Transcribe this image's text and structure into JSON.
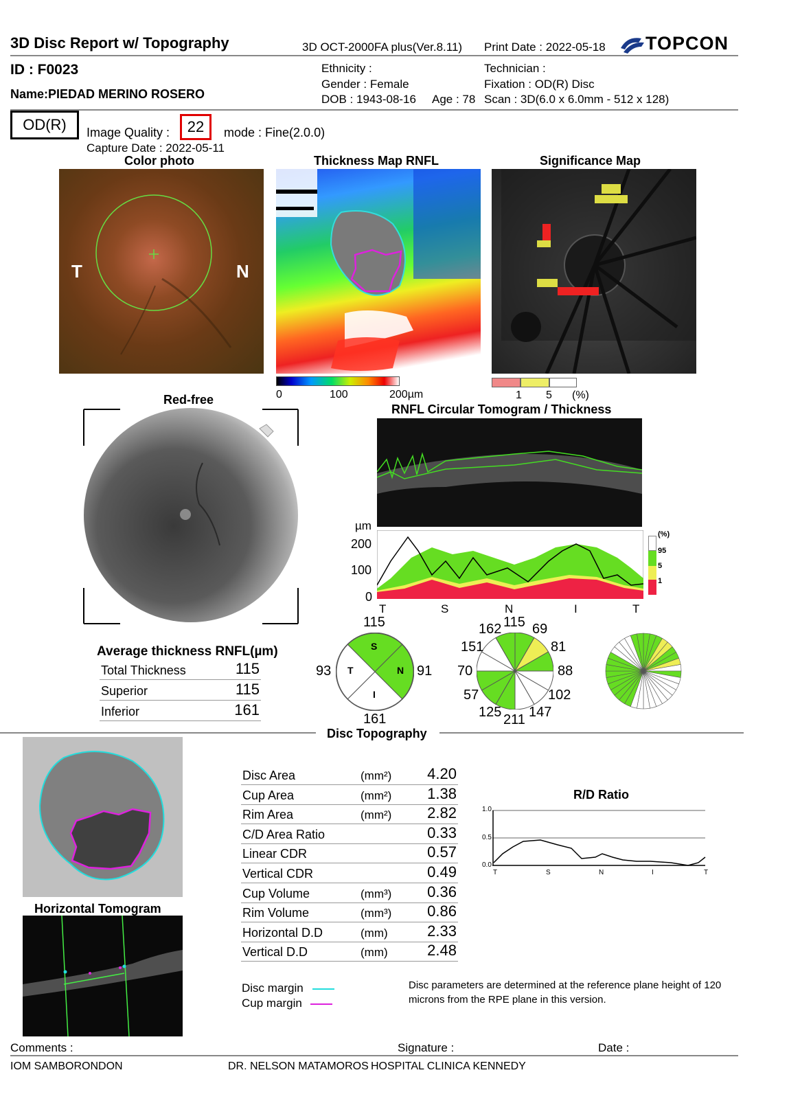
{
  "header": {
    "title": "3D Disc Report w/ Topography",
    "device": "3D OCT-2000FA plus(Ver.8.11)",
    "print_date": "Print Date : 2022-05-18",
    "brand": "TOPCON"
  },
  "patient": {
    "id": "ID : F0023",
    "name": "Name:PIEDAD MERINO ROSERO",
    "ethnicity": "Ethnicity :",
    "gender": "Gender : Female",
    "dob": "DOB : 1943-08-16",
    "age": "Age : 78",
    "technician": "Technician :",
    "fixation": "Fixation : OD(R) Disc",
    "scan": "Scan : 3D(6.0 x 6.0mm - 512 x 128)"
  },
  "exam": {
    "eye": "OD(R)",
    "image_quality_label": "Image Quality :",
    "image_quality": "22",
    "mode": "mode : Fine(2.0.0)",
    "capture_date": "Capture Date : 2022-05-11"
  },
  "panels": {
    "color_photo": "Color photo",
    "thickness_map": "Thickness Map RNFL",
    "significance_map": "Significance Map",
    "red_free": "Red-free",
    "circular_tomogram": "RNFL Circular Tomogram / Thickness",
    "side_T": "T",
    "side_N": "N"
  },
  "thickness_scale": {
    "min": "0",
    "mid": "100",
    "max": "200µm"
  },
  "significance_scale": {
    "a": "1",
    "b": "5",
    "unit": "(%)"
  },
  "thickness_chart": {
    "unit": "µm",
    "yticks": [
      "200",
      "100",
      "0"
    ],
    "xlabels": [
      "T",
      "S",
      "N",
      "I",
      "T"
    ],
    "legend": [
      "(%)",
      "95",
      "5",
      "1"
    ]
  },
  "quadrant": {
    "top": "115",
    "left": "93",
    "right": "91",
    "bottom": "161",
    "S": "S",
    "T": "T",
    "N": "N",
    "I": "I"
  },
  "clock": {
    "top": "115",
    "c1": "69",
    "c2": "81",
    "c3": "88",
    "c4": "102",
    "c5": "147",
    "c6": "211",
    "c7": "125",
    "c8": "57",
    "c9": "70",
    "c10": "151",
    "c11": "162"
  },
  "average_thickness": {
    "title": "Average thickness RNFL(µm)",
    "rows": [
      {
        "label": "Total Thickness",
        "value": "115"
      },
      {
        "label": "Superior",
        "value": "115"
      },
      {
        "label": "Inferior",
        "value": "161"
      }
    ]
  },
  "disc_topography": {
    "title": "Disc Topography",
    "rows": [
      {
        "label": "Disc Area",
        "unit": "(mm²)",
        "value": "4.20"
      },
      {
        "label": "Cup Area",
        "unit": "(mm²)",
        "value": "1.38"
      },
      {
        "label": "Rim Area",
        "unit": "(mm²)",
        "value": "2.82"
      },
      {
        "label": "C/D Area Ratio",
        "unit": "",
        "value": "0.33"
      },
      {
        "label": "Linear CDR",
        "unit": "",
        "value": "0.57"
      },
      {
        "label": "Vertical CDR",
        "unit": "",
        "value": "0.49"
      },
      {
        "label": "Cup Volume",
        "unit": "(mm³)",
        "value": "0.36"
      },
      {
        "label": "Rim Volume",
        "unit": "(mm³)",
        "value": "0.86"
      },
      {
        "label": "Horizontal D.D",
        "unit": "(mm)",
        "value": "2.33"
      },
      {
        "label": "Vertical D.D",
        "unit": "(mm)",
        "value": "2.48"
      }
    ],
    "disc_margin": "Disc margin",
    "cup_margin": "Cup margin",
    "note": "Disc parameters are determined at the reference plane height of 120 microns from the RPE plane in this version.",
    "horizontal_tomogram": "Horizontal Tomogram"
  },
  "rd_ratio": {
    "title": "R/D Ratio",
    "yticks": [
      "1.0",
      "0.5",
      "0.0"
    ],
    "xlabels": [
      "T",
      "S",
      "N",
      "I",
      "T"
    ]
  },
  "footer": {
    "comments": "Comments :",
    "signature": "Signature :",
    "date": "Date :",
    "left": "IOM SAMBORONDON",
    "mid": "DR. NELSON MATAMOROS",
    "right": "HOSPITAL CLINICA KENNEDY"
  },
  "colors": {
    "accent_red": "#e00000",
    "green": "#66dd22",
    "yellow": "#eeee55",
    "cyan": "#22dddd",
    "magenta": "#dd22dd"
  }
}
